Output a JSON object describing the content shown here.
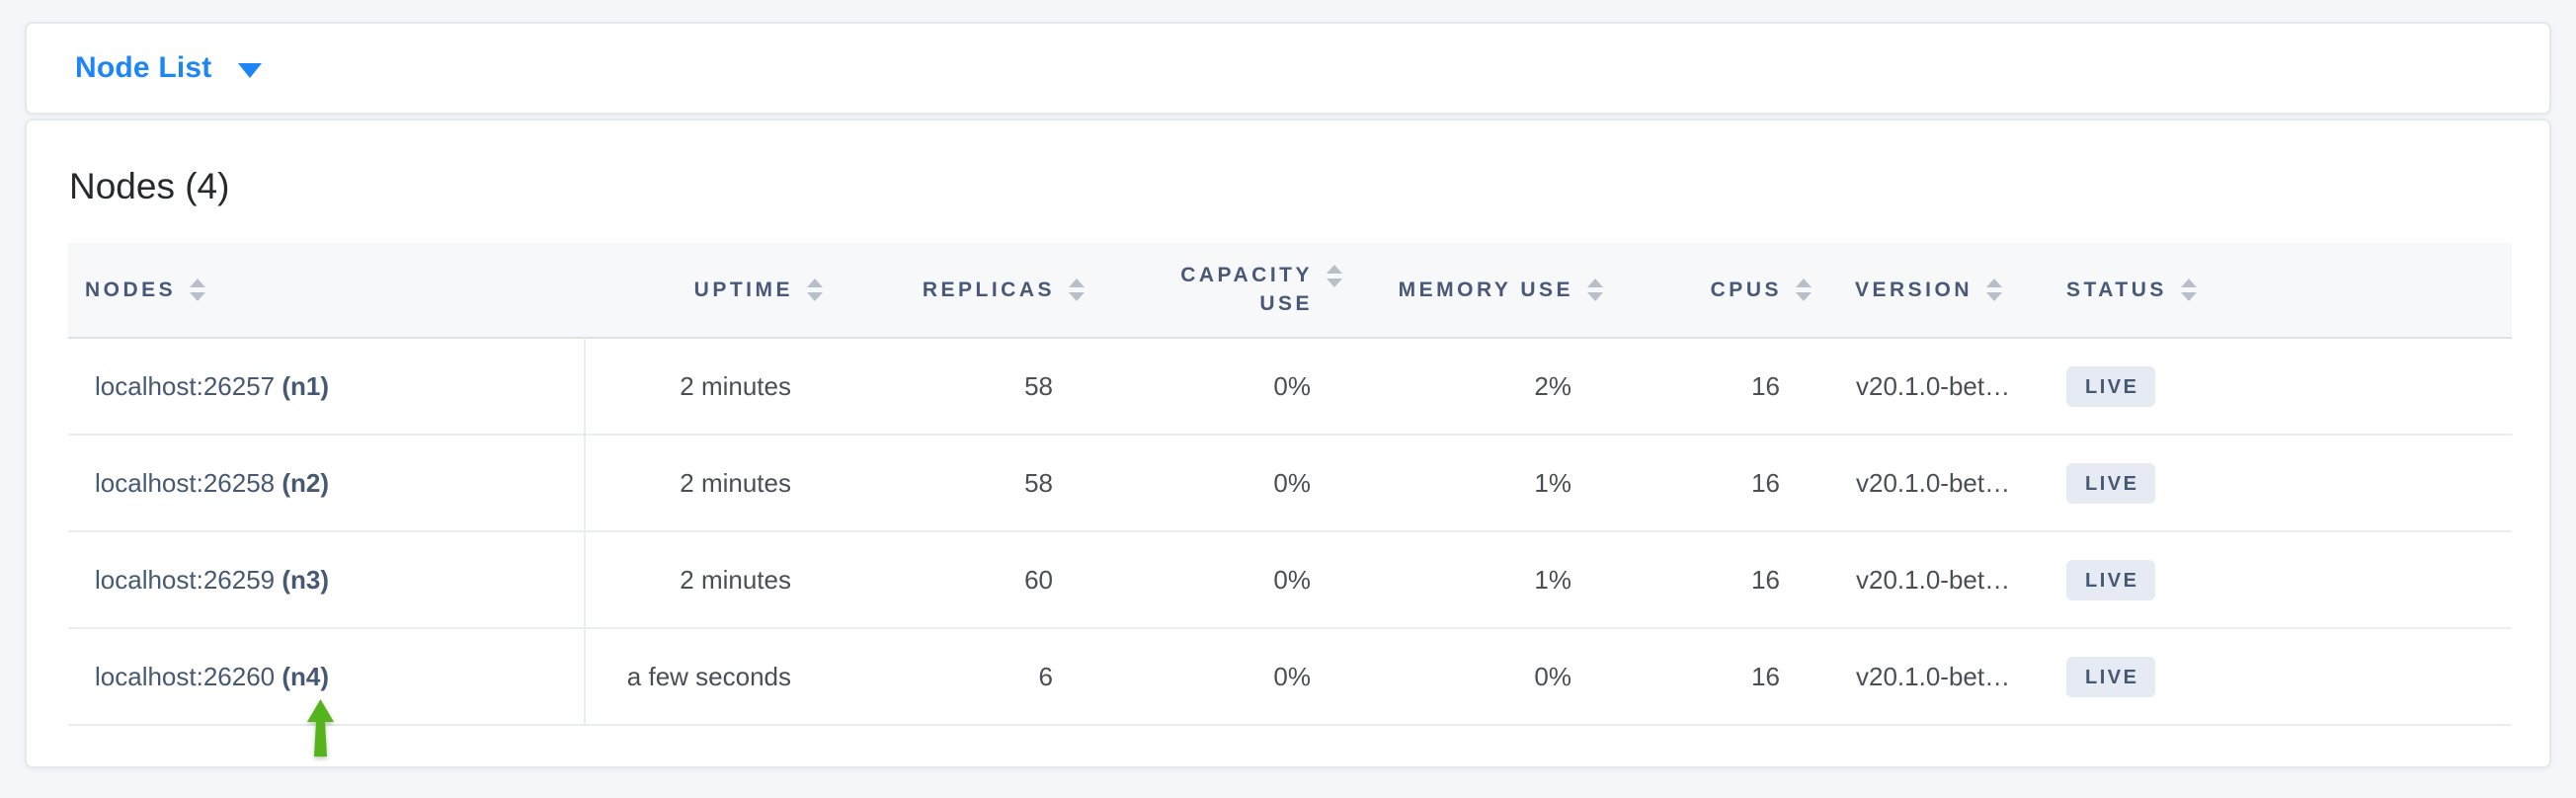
{
  "colors": {
    "page_background": "#f4f6fa",
    "accent_blue": "#1c85f8",
    "header_text": "#4a5878",
    "badge_background": "#e6eaf2",
    "badge_text": "#475872",
    "arrow_green": "#55b41c"
  },
  "toolbar": {
    "view_selector_label": "Node List",
    "caret_icon": "triangle-down"
  },
  "main": {
    "title": "Nodes (4)"
  },
  "table": {
    "columns": [
      {
        "key": "nodes",
        "label": "NODES",
        "align": "left",
        "sortable": true
      },
      {
        "key": "uptime",
        "label": "UPTIME",
        "align": "right",
        "sortable": true
      },
      {
        "key": "replicas",
        "label": "REPLICAS",
        "align": "right",
        "sortable": true
      },
      {
        "key": "capacity_use",
        "label": "CAPACITY USE",
        "align": "right",
        "sortable": true,
        "two_line": true
      },
      {
        "key": "memory_use",
        "label": "MEMORY USE",
        "align": "right",
        "sortable": true
      },
      {
        "key": "cpus",
        "label": "CPUS",
        "align": "right",
        "sortable": true
      },
      {
        "key": "version",
        "label": "VERSION",
        "align": "left",
        "sortable": true
      },
      {
        "key": "status",
        "label": "STATUS",
        "align": "left",
        "sortable": true
      }
    ],
    "rows": [
      {
        "address": "localhost:26257",
        "node_id": "(n1)",
        "uptime": "2 minutes",
        "replicas": "58",
        "capacity_use": "0%",
        "memory_use": "2%",
        "cpus": "16",
        "version": "v20.1.0-bet…",
        "status": "LIVE"
      },
      {
        "address": "localhost:26258",
        "node_id": "(n2)",
        "uptime": "2 minutes",
        "replicas": "58",
        "capacity_use": "0%",
        "memory_use": "1%",
        "cpus": "16",
        "version": "v20.1.0-bet…",
        "status": "LIVE"
      },
      {
        "address": "localhost:26259",
        "node_id": "(n3)",
        "uptime": "2 minutes",
        "replicas": "60",
        "capacity_use": "0%",
        "memory_use": "1%",
        "cpus": "16",
        "version": "v20.1.0-bet…",
        "status": "LIVE"
      },
      {
        "address": "localhost:26260",
        "node_id": "(n4)",
        "uptime": "a few seconds",
        "replicas": "6",
        "capacity_use": "0%",
        "memory_use": "0%",
        "cpus": "16",
        "version": "v20.1.0-bet…",
        "status": "LIVE"
      }
    ]
  },
  "annotation": {
    "arrow_target": "localhost:26260 (n4)"
  }
}
